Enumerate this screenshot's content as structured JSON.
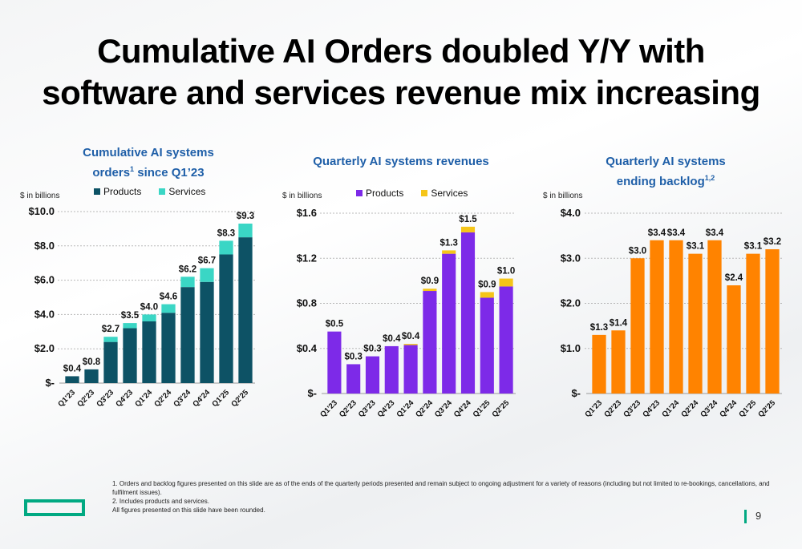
{
  "slide": {
    "title_line1": "Cumulative AI Orders doubled Y/Y with",
    "title_line2": "software and services revenue mix increasing",
    "footnotes": [
      "1.  Orders and backlog figures presented on this slide are as of the ends of the quarterly periods presented and remain subject to ongoing adjustment for a variety of reasons (including but not limited to re-bookings, cancellations, and fulfilment issues).",
      "2.  Includes products and services.",
      "All figures presented on this slide have been rounded."
    ],
    "page_number": "9",
    "colors": {
      "accent": "#01a982",
      "title_blue": "#1f5fa8"
    }
  },
  "chart_data": [
    {
      "type": "bar",
      "stacked": true,
      "title_line1": "Cumulative AI systems",
      "title_line2_pre": "orders",
      "title_line2_sup": "1",
      "title_line2_post": " since Q1’23",
      "unit_label": "$ in billions",
      "categories": [
        "Q1'23",
        "Q2'23",
        "Q3'23",
        "Q4'23",
        "Q1'24",
        "Q2'24",
        "Q3'24",
        "Q4'24",
        "Q1'25",
        "Q2'25"
      ],
      "series": [
        {
          "name": "Products",
          "color": "#0d5265",
          "values": [
            0.4,
            0.8,
            2.4,
            3.2,
            3.6,
            4.1,
            5.6,
            5.9,
            7.5,
            8.5
          ]
        },
        {
          "name": "Services",
          "color": "#3ad6c5",
          "values": [
            0.0,
            0.0,
            0.3,
            0.3,
            0.4,
            0.5,
            0.6,
            0.8,
            0.8,
            0.8
          ]
        }
      ],
      "data_labels": [
        "$0.4",
        "$0.8",
        "$2.7",
        "$3.5",
        "$4.0",
        "$4.6",
        "$6.2",
        "$6.7",
        "$8.3",
        "$9.3"
      ],
      "ylim": [
        0,
        10
      ],
      "yticks": [
        {
          "v": 10,
          "label": "$10.0"
        },
        {
          "v": 8,
          "label": "$8.0"
        },
        {
          "v": 6,
          "label": "$6.0"
        },
        {
          "v": 4,
          "label": "$4.0"
        },
        {
          "v": 2,
          "label": "$2.0"
        },
        {
          "v": 0,
          "label": "$-"
        }
      ],
      "grid": true,
      "legend": "top"
    },
    {
      "type": "bar",
      "stacked": true,
      "title_line1": "Quarterly AI systems revenues",
      "unit_label": "$ in billions",
      "categories": [
        "Q1'23",
        "Q2'23",
        "Q3'23",
        "Q4'23",
        "Q1'24",
        "Q2'24",
        "Q3'24",
        "Q4'24",
        "Q1'25",
        "Q2'25"
      ],
      "series": [
        {
          "name": "Products",
          "color": "#7d2ae8",
          "values": [
            0.55,
            0.26,
            0.33,
            0.42,
            0.43,
            0.91,
            1.24,
            1.43,
            0.85,
            0.95
          ]
        },
        {
          "name": "Services",
          "color": "#f5c518",
          "values": [
            0.0,
            0.0,
            0.0,
            0.0,
            0.01,
            0.02,
            0.03,
            0.05,
            0.05,
            0.07
          ]
        }
      ],
      "data_labels": [
        "$0.5",
        "$0.3",
        "$0.3",
        "$0.4",
        "$0.4",
        "$0.9",
        "$1.3",
        "$1.5",
        "$0.9",
        "$1.0"
      ],
      "ylim": [
        0,
        1.6
      ],
      "yticks": [
        {
          "v": 1.6,
          "label": "$1.6"
        },
        {
          "v": 1.2,
          "label": "$1.2"
        },
        {
          "v": 0.8,
          "label": "$0.8"
        },
        {
          "v": 0.4,
          "label": "$0.4"
        },
        {
          "v": 0,
          "label": "$-"
        }
      ],
      "grid": true,
      "legend": "top"
    },
    {
      "type": "bar",
      "stacked": false,
      "title_line1": "Quarterly AI systems",
      "title_line2_pre": "ending backlog",
      "title_line2_sup": "1,2",
      "title_line2_post": "",
      "unit_label": "$ in billions",
      "categories": [
        "Q1'23",
        "Q2'23",
        "Q3'23",
        "Q4'23",
        "Q1'24",
        "Q2'24",
        "Q3'24",
        "Q4'24",
        "Q1'25",
        "Q2'25"
      ],
      "series": [
        {
          "color": "#ff8300",
          "values": [
            1.3,
            1.4,
            3.0,
            3.4,
            3.4,
            3.1,
            3.4,
            2.4,
            3.1,
            3.2
          ]
        }
      ],
      "data_labels": [
        "$1.3",
        "$1.4",
        "$3.0",
        "$3.4",
        "$3.4",
        "$3.1",
        "$3.4",
        "$2.4",
        "$3.1",
        "$3.2"
      ],
      "ylim": [
        0,
        4
      ],
      "yticks": [
        {
          "v": 4,
          "label": "$4.0"
        },
        {
          "v": 3,
          "label": "$3.0"
        },
        {
          "v": 2,
          "label": "$2.0"
        },
        {
          "v": 1,
          "label": "$1.0"
        },
        {
          "v": 0,
          "label": "$-"
        }
      ],
      "grid": true,
      "legend": "none"
    }
  ]
}
